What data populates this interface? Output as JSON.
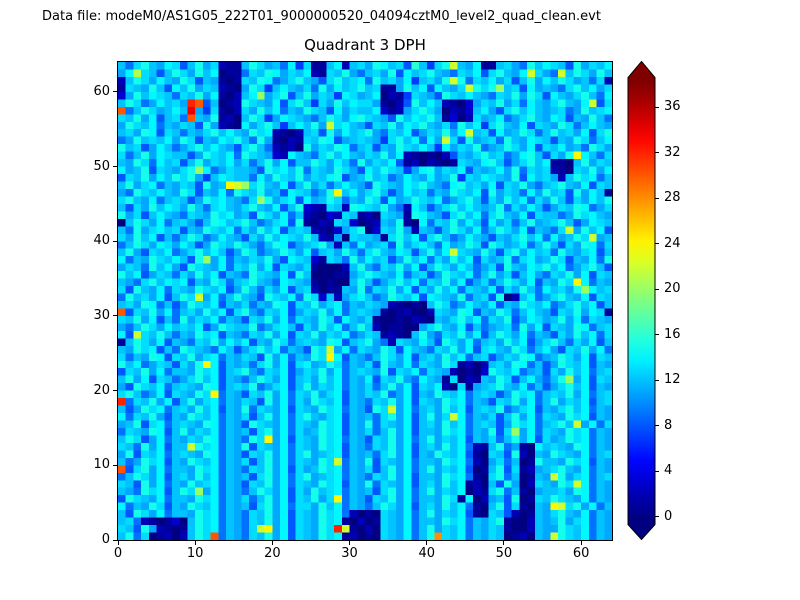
{
  "header": {
    "data_file_label": "Data file: modeM0/AS1G05_222T01_9000000520_04094cztM0_level2_quad_clean.evt"
  },
  "chart_data": {
    "type": "heatmap",
    "title": "Quadrant 3 DPH",
    "xlabel": "",
    "ylabel": "",
    "x_range": [
      0,
      64
    ],
    "y_range": [
      0,
      64
    ],
    "x_ticks": [
      0,
      10,
      20,
      30,
      40,
      50,
      60
    ],
    "y_ticks": [
      0,
      10,
      20,
      30,
      40,
      50,
      60
    ],
    "grid_size": 64,
    "colormap": "jet",
    "grid": false,
    "colorbar": {
      "ticks": [
        0,
        4,
        8,
        12,
        16,
        20,
        24,
        28,
        32,
        36
      ],
      "vmin": 0,
      "vmax": 38,
      "extend": "both"
    },
    "values_encoding": "base36 digit per cell (0-35 counts), rows listed top (y=63) to bottom (y=0), columns x=0..63",
    "values": [
      "c9dfcbed8cfbd211cfdbc9e7d11ce2cdbfecd8gc7dfmcbe11cdb9fcedc8fbdce",
      "beldc8cfdbfce0119dcfebdce21dcfb9cdbf8ecdfcb9dce8dfcbemdb9mcfdbfc",
      "2cfdbecbfd8cb101dcfe9bdfcb8dfcde9fcdbe7cdbfmf9dcebd8cfbecfdbc9d2",
      "1dcbfc8ecfbdc210bfd7cecbd9fbecdfcd11bfce8ecbdmfdfkcd8ebcb9dfcebd",
      "3bfcedc9dcfbe102cekbdf8cfbdc7edbce0217dcb8fdcecb9dcfbfd8ecbdfc9e",
      "cfd9becdbwu8c012fdcbe8dfc7dbfceddb1028fcec2103bdcfbd9ecbdfcbem8d",
      "u9cfdbcecyb7d102dbfce9cbfdc8ebdcce312bdfdb0213ceb8dfcecbcd9bfcde",
      "dcfbe8cd9ucbf120cfd7bedcb9cfdbefdcb8fcedfc1302dbce9bdfcbed8cbfc9",
      "bfdce9cbdc8fb210ebdfc7cecfbmdecb8dcfbedfcbd9fce7dfcbe8dcbfd9cecb",
      "cdbfe8dc9cbdfcecbfde2102cd8fbecdfb9dce8bdcfbemcd8ebcfd9cfcdbe8df",
      "9bfcdcebfd8cbedfc9fb1021dcfe8bcdcb7dfce9ebmd8fbcd9fcbedc8cbfd9ce",
      "fcd8bec9bdfcecb8dfc92120fbdcfe9cd8cbfdcec7ebdcf9bcfdbe8dcebc9fdb",
      "d9cfbedcc8bfdce9fdcb32ecb9dfcecbdcfbe2101028cbdfcd9befc8dbfoec9d",
      "cbfd9ecd8cfbdcebd9cfbe8ccfdbec9fbdce81202101dcbefc8bdfce110cfbdc",
      "ebcf8dcbdfke9bdccb8fdecf9dcbfdb8ecfdc7befbdce8cbcebf9dcd210dcfbe",
      "8dcfbecfdfb7cedcc9ebfdcfbdcef8bcfcd9becbebcf7dcedcbf8ecdb2cfde9c",
      "cfbde9cbdc8fbcomkdfcbe8cfbd9cecb8fdcbedfcb9efcdbe8dcfb9cdfcbe8dc",
      "b9fdcecbfd8cbe9fdcfbc8edc9bfocebdfc8becd9cbfdce8fbdc9ebfcd8fbec1",
      "dfcbe9cdc8bfdecb9dkfbde8ebcfd9cbfd8ebcfdce9bdfc8dbfce9dbfc8dbecf",
      "c8dbfcedbfc9decbdfcbe8cf321dc2fedcfb92ec8bdfcecbcf9dbec8bdcfe9bd",
      "fbd8cecb9dcbfdebc8fdbe9c21032dc120dcb1fecb8dfce9dfcbe8dcc9bfdecb",
      "0cfdbe9cdb8cfecdfc9bde8f1021dc3012cbf10e9dcfbec8ebd9cfbcdfc8bedc",
      "c9fbdecd8cbfdce9dbfce8cdc2103bdf03dcfb2cb8cfdbe9cfdbe8cb9dmbfce8",
      "dbfce8c9cfd9becb8dbfcedcfc21b0dccb1dfce8dfc9becb8cbdfce9ebcfdmbc",
      "9cfdbedbec8bfdcfdb9cfe8bcdfb2c9ebcd8fbdec9ebcfd8fdbce9cfc8dbfe9d",
      "cfb8dce9bdfcec8bfd9bcfdbe8cdbfc9dfcbed8cfbemdcbfc8dfbecd9fcbde8c",
      "e9cbfdcec8fkbe9cbdcfb8edc31dc9fbecd8bfce9dbfce8dbcf9debcfd8cbe9f",
      "bdc9fceb8fdcbe9dcfbe8dcbd10002cfb9dcfbe8cfdbec9bd8fcbedfce9bdfc8",
      "fce8bdc9dbfce8cb9fdcbe8fc00011bdfdcbe9cd8bfdce9cfbd8ceb9dcfbe8dc",
      "cb9dfcede8cbfd9cdfcb9edcb10100cfc8bdfce9dcfbe8bd9cfdbe8cbfdoe9cb",
      "d8fcbe9dcbfdce8bfc9dbe8cd2011cbf9dcfbe8dbfce9dcbe8dbfc9ecdbfkecd",
      "9fcdbe8cfdmbe9cfcb8fdce9fd3c2bdec9bfdce8edcbf9cd8f02ce9bdfcbe8dc",
      "cdbfe9c8bfdce8cbd9cbfe8dcfbde9cbdcb21010cfd9becbe8cbfdce9bdfce8c",
      "u8dcfbe9cdbfce8dfb9dce8bdcfbe9cdcb1012002dcbfe8cbfd9cecb8dcfbed1",
      "dcfbe8c9fbdce9cb8dcfbe9dcbfd8ecbd10010210cbdfce9dcf8bedbcfbe9dcb",
      "b9cfdbecdce8bfdccf9bdec8dbfce9cfc201100bdfcbe8c9bcd9fbe8dcbfe9cd",
      "e8mdcfc9cbfde8cb9dcfbe8dcfbdce9bdc1210cfb9dcfbe8cfdbe9cb8dbfce9d",
      "1cfdbe8cb9dcfbece8cbfd9cdcbfe8cdfb92dcbec8fdbe9cdbfce8bdfc9dbe8c",
      "cbfde8c9fdcb9ec8bdfce9cb8fdmbe9dcbfd8ecb9dcfbe8decbfd9ceb8dcfbe9",
      "d9cbfe8dcfbde9cbdc8fbe9cbfdoe8cb9cfdbe8cdbfce9cd8bdcfe9bcfdbe8dc",
      "fce9bdc8dbfoe8cbc9dfbe8debcfd9cbd8fcbe9dcbfd1202cdbfe9c8bfdce8cb",
      "8dcfbe9ccbfde8cdfb9dce8bdcfbe9cdcbf8dce9dcb20103fdce9bc8dbfce9cd",
      "cfbe8dc9bdfce8cb9cfdbe8cdbfce9cbe8dcfb9ecb1d021cbfd8ceb9cfkbe8dc",
      "b8fdce9cdcbfe8cdcf9bde8cfbdce9cbd9cfbe8dce20d1bcdfcbe9c8bdfce8cb",
      "dfc9be8dcbfdo9cb8dcfbe9dcfbde8cbdcf9be8cbfdce9cdc8bfde9cdcfbe9cd",
      "w9dcfbe8cfbde9cbdc8fbe9dbfdce8cb9dcfbe8dcbfde9cb8dcfbe9cfbdce8cd",
      "c8bfde9cdbfce8cbf9dcbe8dcbfde9cb8fdmbe9cdbfce8cdcf9bde8cbdfce9cb",
      "e9dcfb8cbfdce9cbd8cfbe9dfcbde8cbc9dfbe8cfbdme9cbd8cfbe9dcbfde8cb",
      "bcf8de9cdcbfe9cb8fdcbe9dcbfde8cbf9dcbe8cdbfce9cdc8bfde9cdfcmbe9d",
      "9dcbfe8cfbdce9cbc8dfbe9dbcfde8cbd9cfbe8ccbfde9cbf8dkbe9dcbfde9cb",
      "cfd8be9cbdcfe9cb9fdobe8dcbfde9cb8dcfbe9cfbdce8cbd9cfbe8dbcfde9cb",
      "dc9fbe8ccmfde9cbf8dcbe9dcbfde8cb9dcfbe8cdbfce921cf9b10ecdcbfe9cb",
      "bf8dce9cdcbfe9cb8dcfbe9dfbcde8cbc9dfbe8cbfdce810dc8f20cbfdcbe9cd",
      "c9bfde8cbfdce9cbd8cfbe9dcbfdm9cbf8dcbe9ccbfde920bd9c01fccbfde8cb",
      "u8dfbe9ccbfde9cb9dcfbe8dbcfde9cbd8cfbe9cfbdce801cf8d12bcdfcbe9cb",
      "9cfdbe8cdbfce9cbc8dfbe9dfbcde9cb9dcfbe8ccbfde910df9c01cbmfbde9cd",
      "dc8fbe9cbfcde9cb8dcfbe9dcbfde8cbf9dcbe8cdbfce120c8fb02dcbfdme9cb",
      "cb9fde8cfdkbe9cb9cfdbe8dbfcde9cbc8dfbe9cfbdce021df9c10bccdbfe9cb",
      "8fdcbe9ccbfde9cbd9cfbe8dcfbdo9cb8dcfbe9ccbfd1e02bc8f01dcfdcbe9cb",
      "e9cbfd8cbfdce9cbc8dfbe9ddbfce9cb9cfdbe8cdbfce910cf8d10cbomdfbe9c",
      "c8fdbe9ccbfde9cb9dcfbe8dcbfde92010dcbe9cfbdce810dc8201cbdfcbe9cb",
      "cd9210130cfde9cb9dcfbe8dcbfde10201dcbe9ccbfde9cbdf1002cbcfbde9cb",
      "dc8fb2101cfde9cb9dmobe8dcbfdwm1020dcbe9cfbdce9cbdc1002cbbfdce9cb",
      "cf9d01202cfdu9cb9dcfbe8dcbfde12010dcbe9cfsdce9cbdc0120cbmfdce9cb"
    ]
  }
}
